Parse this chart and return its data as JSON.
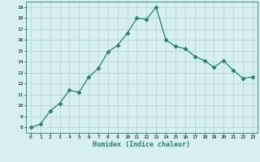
{
  "x": [
    0,
    1,
    2,
    3,
    4,
    5,
    6,
    7,
    8,
    9,
    10,
    11,
    12,
    13,
    14,
    15,
    16,
    17,
    18,
    19,
    20,
    21,
    22,
    23
  ],
  "y": [
    8,
    8.3,
    9.5,
    10.2,
    11.4,
    11.2,
    12.6,
    13.4,
    14.9,
    15.5,
    16.6,
    18.0,
    17.9,
    19.0,
    16.0,
    15.4,
    15.2,
    14.5,
    14.1,
    13.5,
    14.1,
    13.2,
    12.5,
    12.6
  ],
  "line_color": "#2e7d6e",
  "marker": "D",
  "marker_size": 2.5,
  "bg_color": "#d6f0ef",
  "grid_color": "#b8d8d5",
  "xlabel": "Humidex (Indice chaleur)",
  "ylim": [
    7.5,
    19.5
  ],
  "xlim": [
    -0.5,
    23.5
  ],
  "yticks": [
    8,
    9,
    10,
    11,
    12,
    13,
    14,
    15,
    16,
    17,
    18,
    19
  ],
  "xticks": [
    0,
    1,
    2,
    3,
    4,
    5,
    6,
    7,
    8,
    9,
    10,
    11,
    12,
    13,
    14,
    15,
    16,
    17,
    18,
    19,
    20,
    21,
    22,
    23
  ]
}
